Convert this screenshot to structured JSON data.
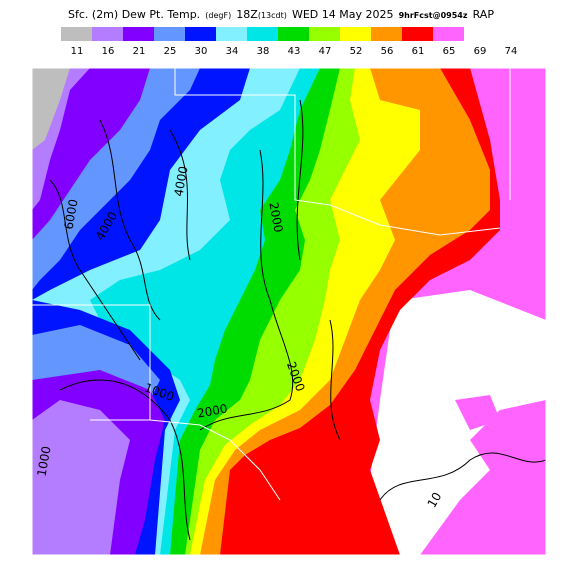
{
  "header": {
    "title": [
      "Sfc. (2m) Dew Pt. Temp.",
      "(degF)",
      "18Z",
      "(13cdt)",
      "WED 14 May 2025",
      "9hrFcst@0954z",
      "RAP"
    ]
  },
  "colorbar": {
    "labels": [
      "11",
      "16",
      "21",
      "25",
      "30",
      "34",
      "38",
      "43",
      "47",
      "52",
      "56",
      "61",
      "65",
      "69",
      "74"
    ],
    "colors": [
      "#bebebe",
      "#b47cff",
      "#8200ff",
      "#6496ff",
      "#0014ff",
      "#82f0ff",
      "#00e6e6",
      "#00dc00",
      "#96ff00",
      "#ffff00",
      "#ff9600",
      "#ff0000",
      "#ff64ff"
    ]
  },
  "map": {
    "contour_labels": [
      "6000",
      "4000",
      "4000",
      "2000",
      "2000",
      "2000",
      "1000",
      "1000",
      "10"
    ]
  }
}
